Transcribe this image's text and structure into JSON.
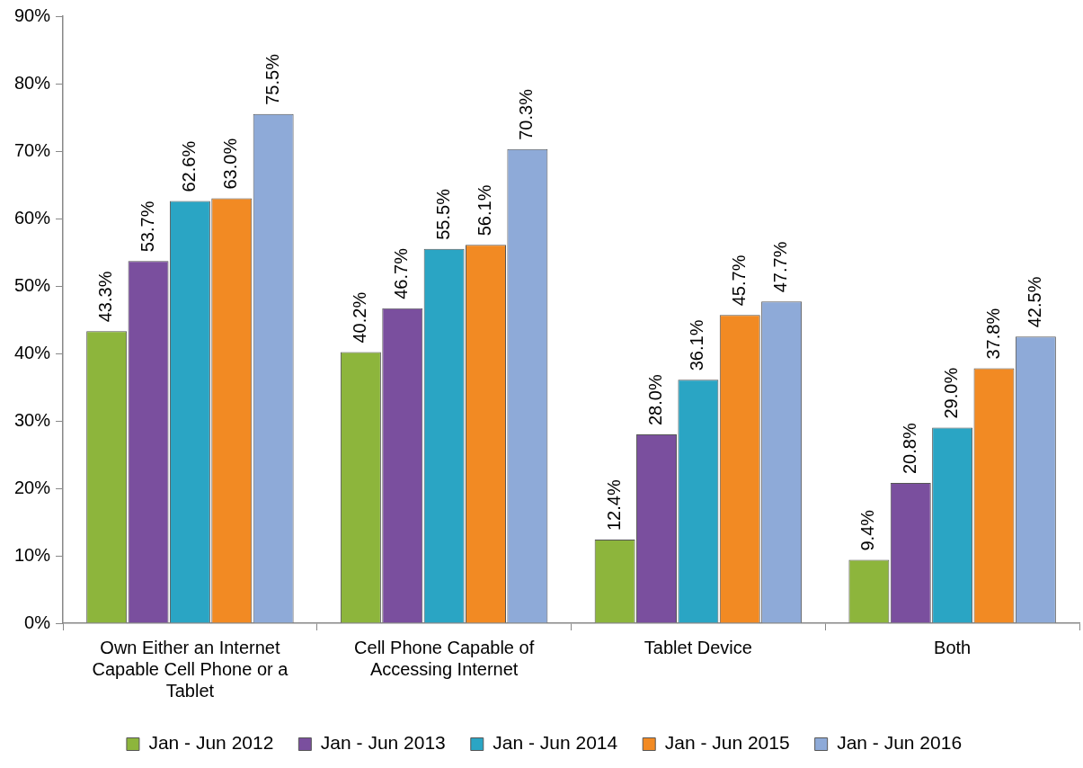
{
  "chart_data": {
    "type": "bar",
    "categories": [
      "Own Either an Internet Capable Cell Phone or a Tablet",
      "Cell Phone Capable of Accessing Internet",
      "Tablet Device",
      "Both"
    ],
    "series": [
      {
        "name": "Jan - Jun 2012",
        "color": "#8db53c",
        "values": [
          43.3,
          40.2,
          12.4,
          9.4
        ],
        "value_labels": [
          "43.3%",
          "40.2%",
          "12.4%",
          "9.4%"
        ]
      },
      {
        "name": "Jan - Jun 2013",
        "color": "#7a4f9e",
        "values": [
          53.7,
          46.7,
          28.0,
          20.8
        ],
        "value_labels": [
          "53.7%",
          "46.7%",
          "28.0%",
          "20.8%"
        ]
      },
      {
        "name": "Jan - Jun 2014",
        "color": "#2aa5c4",
        "values": [
          62.6,
          55.5,
          36.1,
          29.0
        ],
        "value_labels": [
          "62.6%",
          "55.5%",
          "36.1%",
          "29.0%"
        ]
      },
      {
        "name": "Jan - Jun 2015",
        "color": "#f28a23",
        "values": [
          63.0,
          56.1,
          45.7,
          37.8
        ],
        "value_labels": [
          "63.0%",
          "56.1%",
          "45.7%",
          "37.8%"
        ]
      },
      {
        "name": "Jan - Jun 2016",
        "color": "#8eaad8",
        "values": [
          75.5,
          70.3,
          47.7,
          42.5
        ],
        "value_labels": [
          "75.5%",
          "70.3%",
          "47.7%",
          "42.5%"
        ]
      }
    ],
    "ylim": [
      0,
      90
    ],
    "yticks": [
      {
        "value": 0,
        "label": "0%"
      },
      {
        "value": 10,
        "label": "10%"
      },
      {
        "value": 20,
        "label": "20%"
      },
      {
        "value": 30,
        "label": "30%"
      },
      {
        "value": 40,
        "label": "40%"
      },
      {
        "value": 50,
        "label": "50%"
      },
      {
        "value": 60,
        "label": "60%"
      },
      {
        "value": 70,
        "label": "70%"
      },
      {
        "value": 80,
        "label": "80%"
      },
      {
        "value": 90,
        "label": "90%"
      }
    ],
    "grid": false,
    "legend": "bottom"
  }
}
